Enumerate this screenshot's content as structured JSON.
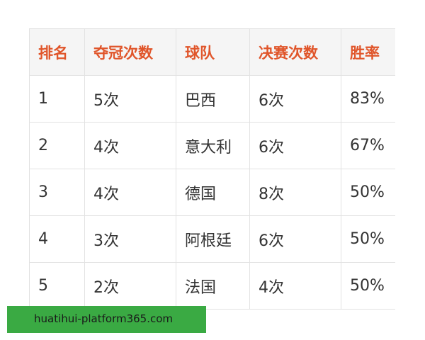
{
  "table": {
    "headers": [
      "排名",
      "夺冠次数",
      "球队",
      "决赛次数",
      "胜率"
    ],
    "rows": [
      [
        "1",
        "5次",
        "巴西",
        "6次",
        "83%"
      ],
      [
        "2",
        "4次",
        "意大利",
        "6次",
        "67%"
      ],
      [
        "3",
        "4次",
        "德国",
        "8次",
        "50%"
      ],
      [
        "4",
        "3次",
        "阿根廷",
        "6次",
        "50%"
      ],
      [
        "5",
        "2次",
        "法国",
        "4次",
        "50%"
      ]
    ]
  },
  "banner": {
    "text": "huatihui-platform365.com",
    "color": "#3aaa43"
  },
  "colors": {
    "header_text": "#e0552a"
  }
}
